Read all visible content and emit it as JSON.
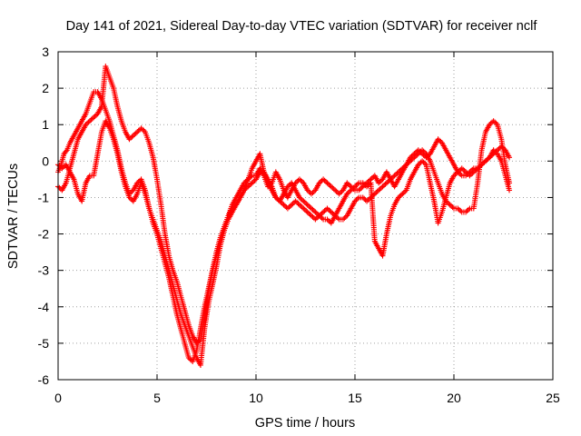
{
  "chart_data": {
    "type": "scatter",
    "title": "Day 141 of 2021, Sidereal Day-to-day VTEC variation (SDTVAR) for receiver nclf",
    "xlabel": "GPS time / hours",
    "ylabel": "SDTVAR / TECUs",
    "xlim": [
      0,
      25
    ],
    "ylim": [
      -6,
      3
    ],
    "xticks": [
      0,
      5,
      10,
      15,
      20,
      25
    ],
    "yticks": [
      -6,
      -5,
      -4,
      -3,
      -2,
      -1,
      0,
      1,
      2,
      3
    ],
    "grid": true,
    "marker": "plus",
    "color": "#ff0000",
    "series": [
      {
        "x": [
          0.0,
          0.15,
          0.3,
          0.45,
          0.6,
          0.8,
          1.0,
          1.2,
          1.4,
          1.6,
          1.8,
          2.0,
          2.2,
          2.4,
          2.6,
          2.8,
          3.0,
          3.2,
          3.4,
          3.6,
          3.8,
          4.0,
          4.2,
          4.4,
          4.6,
          4.8,
          5.0,
          5.2,
          5.4,
          5.6,
          5.8,
          6.0,
          6.2,
          6.4,
          6.6,
          6.8,
          7.0,
          7.2,
          7.4,
          7.6,
          7.8,
          8.0,
          8.2,
          8.4,
          8.6,
          8.8,
          9.0,
          9.2,
          9.4,
          9.6,
          9.8,
          10.0,
          10.2,
          10.4,
          10.6,
          10.8,
          11.0,
          11.2,
          11.4,
          11.6,
          11.8,
          12.0,
          12.2,
          12.4,
          12.6,
          12.8,
          13.0,
          13.2,
          13.4,
          13.6,
          13.8,
          14.0,
          14.2,
          14.4,
          14.6,
          14.8,
          15.0,
          15.2,
          15.4,
          15.6,
          15.8,
          16.0,
          16.2,
          16.4,
          16.6,
          16.8,
          17.0,
          17.2,
          17.4,
          17.6,
          17.8,
          18.0,
          18.2,
          18.4,
          18.6,
          18.8,
          19.0,
          19.2,
          19.4,
          19.6,
          19.8,
          20.0,
          20.2,
          20.4,
          20.6,
          20.8,
          21.0,
          21.2,
          21.4,
          21.6,
          21.8,
          22.0,
          22.2,
          22.4,
          22.6,
          22.8
        ],
        "y": [
          -0.3,
          -0.1,
          0.2,
          0.3,
          0.5,
          0.7,
          0.9,
          1.1,
          1.3,
          1.6,
          1.9,
          1.9,
          1.7,
          1.4,
          1.1,
          0.7,
          0.3,
          -0.2,
          -0.6,
          -0.9,
          -0.8,
          -0.6,
          -0.5,
          -0.8,
          -1.3,
          -1.7,
          -2.0,
          -2.4,
          -2.8,
          -3.2,
          -3.7,
          -4.2,
          -4.6,
          -5.0,
          -5.4,
          -5.5,
          -5.2,
          -4.6,
          -4.0,
          -3.5,
          -3.0,
          -2.6,
          -2.2,
          -1.8,
          -1.5,
          -1.2,
          -1.0,
          -0.8,
          -0.6,
          -0.5,
          -0.4,
          -0.4,
          -0.2,
          -0.4,
          -0.7,
          -0.6,
          -0.3,
          -0.5,
          -0.8,
          -1.0,
          -0.8,
          -0.6,
          -0.5,
          -0.6,
          -0.8,
          -0.9,
          -0.8,
          -0.6,
          -0.5,
          -0.6,
          -0.7,
          -0.8,
          -0.9,
          -0.8,
          -0.6,
          -0.7,
          -0.8,
          -0.8,
          -0.7,
          -0.6,
          -0.5,
          -0.4,
          -0.6,
          -0.5,
          -0.3,
          -0.5,
          -0.7,
          -0.5,
          -0.3,
          -0.1,
          0.1,
          0.2,
          0.3,
          0.2,
          0.1,
          0.2,
          0.4,
          0.6,
          0.5,
          0.3,
          0.1,
          -0.1,
          -0.3,
          -0.4,
          -0.4,
          -0.3,
          -0.2,
          -0.2,
          -0.1,
          0.0,
          0.1,
          0.2,
          0.3,
          0.4,
          0.3,
          0.1
        ]
      },
      {
        "x": [
          0.0,
          0.2,
          0.4,
          0.6,
          0.8,
          1.0,
          1.2,
          1.4,
          1.6,
          1.8,
          2.0,
          2.2,
          2.4,
          2.6,
          2.8,
          3.0,
          3.2,
          3.4,
          3.6,
          3.8,
          4.0,
          4.2,
          4.4,
          4.6,
          4.8,
          5.0,
          5.2,
          5.4,
          5.6,
          5.8,
          6.0,
          6.2,
          6.4,
          6.6,
          6.8,
          7.0,
          7.2,
          7.4,
          7.6,
          7.8,
          8.0,
          8.2,
          8.4,
          8.6,
          8.8,
          9.0,
          9.2,
          9.4,
          9.6,
          9.8,
          10.0,
          10.2,
          10.4,
          10.6,
          10.8,
          11.0,
          11.2,
          11.4,
          11.6,
          11.8,
          12.0,
          12.2,
          12.4,
          12.6,
          12.8,
          13.0,
          13.2,
          13.4,
          13.6,
          13.8,
          14.0,
          14.2,
          14.4,
          14.6,
          14.8,
          15.0,
          15.2,
          15.4,
          15.6,
          15.8,
          16.0,
          16.2,
          16.4,
          16.6,
          16.8,
          17.0,
          17.2,
          17.4,
          17.6,
          17.8,
          18.0,
          18.2,
          18.4,
          18.6,
          18.8,
          19.0,
          19.2,
          19.4,
          19.6,
          19.8,
          20.0,
          20.2,
          20.4,
          20.6,
          20.8,
          21.0,
          21.2,
          21.4,
          21.6,
          21.8,
          22.0,
          22.2,
          22.4,
          22.6,
          22.8
        ],
        "y": [
          -0.7,
          -0.8,
          -0.6,
          -0.2,
          0.2,
          0.6,
          0.8,
          1.0,
          1.1,
          1.2,
          1.3,
          1.5,
          2.6,
          2.3,
          2.0,
          1.5,
          1.1,
          0.8,
          0.6,
          0.7,
          0.8,
          0.9,
          0.8,
          0.5,
          0.1,
          -0.5,
          -1.2,
          -2.0,
          -2.6,
          -3.0,
          -3.3,
          -3.7,
          -4.1,
          -4.5,
          -4.8,
          -5.0,
          -4.9,
          -4.3,
          -3.6,
          -3.0,
          -2.5,
          -2.1,
          -1.8,
          -1.5,
          -1.3,
          -1.2,
          -1.0,
          -0.8,
          -0.5,
          -0.2,
          0.0,
          0.2,
          -0.3,
          -0.6,
          -0.8,
          -1.0,
          -1.1,
          -1.2,
          -1.3,
          -1.2,
          -1.1,
          -1.2,
          -1.3,
          -1.4,
          -1.5,
          -1.6,
          -1.5,
          -1.4,
          -1.3,
          -1.4,
          -1.5,
          -1.6,
          -1.6,
          -1.5,
          -1.3,
          -1.1,
          -1.0,
          -1.0,
          -1.1,
          -1.0,
          -0.9,
          -0.8,
          -0.7,
          -0.6,
          -0.5,
          -0.4,
          -0.3,
          -0.2,
          -0.1,
          0.0,
          0.1,
          0.2,
          0.3,
          0.2,
          0.0,
          -0.3,
          -0.6,
          -0.9,
          -1.1,
          -1.2,
          -1.3,
          -1.3,
          -1.4,
          -1.4,
          -1.3,
          -1.3,
          -0.6,
          0.3,
          0.8,
          1.0,
          1.1,
          1.0,
          0.6,
          -0.1,
          -0.6
        ]
      },
      {
        "x": [
          0.0,
          0.2,
          0.4,
          0.6,
          0.8,
          1.0,
          1.2,
          1.4,
          1.6,
          1.8,
          2.0,
          2.2,
          2.4,
          2.6,
          2.8,
          3.0,
          3.2,
          3.4,
          3.6,
          3.8,
          4.0,
          4.2,
          4.4,
          4.6,
          4.8,
          5.0,
          5.2,
          5.4,
          5.6,
          5.8,
          6.0,
          6.2,
          6.4,
          6.6,
          6.8,
          7.0,
          7.2,
          7.4,
          7.6,
          7.8,
          8.0,
          8.2,
          8.4,
          8.6,
          8.8,
          9.0,
          9.2,
          9.4,
          9.6,
          9.8,
          10.0,
          10.2,
          10.4,
          10.6,
          10.8,
          11.0,
          11.2,
          11.4,
          11.6,
          11.8,
          12.0,
          12.2,
          12.4,
          12.6,
          12.8,
          13.0,
          13.2,
          13.4,
          13.6,
          13.8,
          14.0,
          14.2,
          14.4,
          14.6,
          14.8,
          15.0,
          15.2,
          15.4,
          15.6,
          15.8,
          16.0,
          16.2,
          16.4,
          16.6,
          16.8,
          17.0,
          17.2,
          17.4,
          17.6,
          17.8,
          18.0,
          18.2,
          18.4,
          18.6,
          18.8,
          19.0,
          19.2,
          19.4,
          19.6,
          19.8,
          20.0,
          20.2,
          20.4,
          20.6,
          20.8,
          21.0,
          21.2,
          21.4,
          21.6,
          21.8,
          22.0,
          22.2,
          22.4,
          22.6,
          22.8
        ],
        "y": [
          -0.1,
          -0.2,
          -0.1,
          -0.3,
          -0.5,
          -0.9,
          -1.1,
          -0.6,
          -0.4,
          -0.4,
          0.2,
          0.8,
          1.1,
          0.9,
          0.6,
          0.2,
          -0.3,
          -0.7,
          -1.0,
          -1.1,
          -0.9,
          -0.6,
          -0.9,
          -1.3,
          -1.6,
          -1.9,
          -2.2,
          -2.6,
          -3.0,
          -3.4,
          -3.8,
          -4.2,
          -4.5,
          -4.8,
          -5.1,
          -5.4,
          -5.6,
          -4.6,
          -3.9,
          -3.4,
          -2.9,
          -2.3,
          -1.9,
          -1.6,
          -1.4,
          -1.2,
          -1.0,
          -0.8,
          -0.7,
          -0.6,
          -0.5,
          -0.3,
          -0.3,
          -0.5,
          -0.7,
          -1.0,
          -1.1,
          -0.9,
          -0.7,
          -0.6,
          -0.8,
          -1.0,
          -1.1,
          -1.2,
          -1.3,
          -1.4,
          -1.5,
          -1.6,
          -1.6,
          -1.7,
          -1.5,
          -1.3,
          -1.1,
          -0.9,
          -0.8,
          -0.7,
          -0.6,
          -0.6,
          -0.7,
          -0.6,
          -2.2,
          -2.4,
          -2.6,
          -2.0,
          -1.5,
          -1.2,
          -1.0,
          -0.9,
          -0.8,
          -0.5,
          -0.3,
          -0.1,
          0.0,
          -0.1,
          -0.6,
          -1.1,
          -1.7,
          -1.4,
          -1.0,
          -0.6,
          -0.4,
          -0.3,
          -0.2,
          -0.3,
          -0.4,
          -0.3,
          -0.2,
          -0.1,
          0.0,
          0.1,
          0.3,
          0.2,
          0.0,
          -0.4,
          -0.8
        ]
      }
    ]
  }
}
